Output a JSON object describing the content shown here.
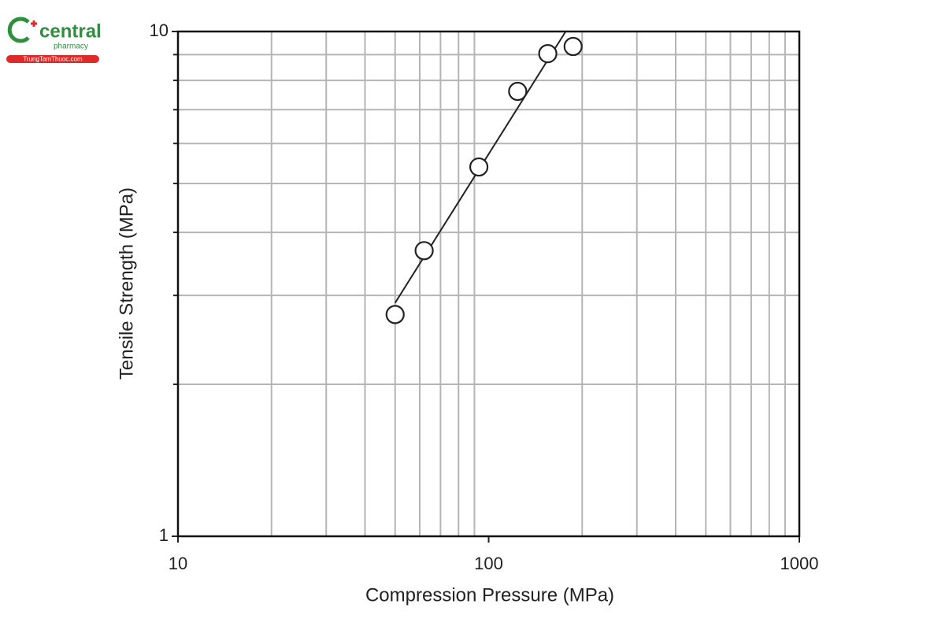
{
  "watermark": {
    "brand": "central",
    "sub": "pharmacy",
    "site": "TrungTamThuoc.com"
  },
  "chart_data": {
    "type": "scatter",
    "x_label": "Compression Pressure (MPa)",
    "y_label": "Tensile Strength (MPa)",
    "xscale": "log",
    "yscale": "log",
    "grid": true,
    "xlim": [
      10,
      1000
    ],
    "ylim": [
      1,
      10
    ],
    "xticks": [
      10,
      100,
      1000
    ],
    "yticks": [
      1,
      10
    ],
    "xminorticks": [
      20,
      30,
      40,
      50,
      60,
      70,
      80,
      90,
      200,
      300,
      400,
      500,
      600,
      700,
      800,
      900
    ],
    "yminorticks": [
      2,
      3,
      4,
      5,
      6,
      7,
      8,
      9
    ],
    "color": "#222222",
    "points": {
      "x": [
        50,
        62,
        93,
        124,
        155,
        187
      ],
      "values": [
        2.75,
        3.68,
        5.39,
        7.61,
        9.04,
        9.34
      ]
    },
    "fit_line": {
      "x": [
        50,
        177
      ],
      "values": [
        2.9,
        10
      ]
    }
  }
}
